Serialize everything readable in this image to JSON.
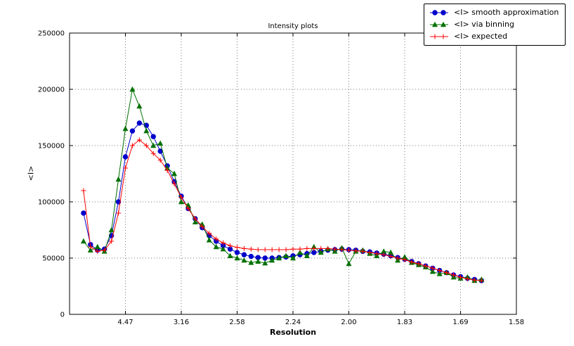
{
  "figure": {
    "title": "Intensity plots",
    "xlabel": "Resolution",
    "ylabel": "<I>"
  },
  "legend": {
    "entries": [
      {
        "label": "<I> smooth approximation"
      },
      {
        "label": "<I> via binning"
      },
      {
        "label": "<I> expected"
      }
    ]
  },
  "chart_data": {
    "type": "line",
    "title": "Intensity plots",
    "xlabel": "Resolution",
    "ylabel": "<I>",
    "grid": "dotted",
    "legend_position": "upper right",
    "x_axis": {
      "lim": [
        0,
        0.4
      ],
      "ticks": [
        {
          "value": 0.05,
          "label": "4.47"
        },
        {
          "value": 0.1,
          "label": "3.16"
        },
        {
          "value": 0.15,
          "label": "2.58"
        },
        {
          "value": 0.2,
          "label": "2.24"
        },
        {
          "value": 0.25,
          "label": "2.00"
        },
        {
          "value": 0.3,
          "label": "1.83"
        },
        {
          "value": 0.35,
          "label": "1.69"
        },
        {
          "value": 0.4,
          "label": "1.58"
        }
      ]
    },
    "y_axis": {
      "lim": [
        0,
        250000
      ],
      "ticks": [
        {
          "value": 0,
          "label": "0"
        },
        {
          "value": 50000,
          "label": "50000"
        },
        {
          "value": 100000,
          "label": "100000"
        },
        {
          "value": 150000,
          "label": "150000"
        },
        {
          "value": 200000,
          "label": "200000"
        },
        {
          "value": 250000,
          "label": "250000"
        }
      ]
    },
    "x": [
      0.0125,
      0.01875,
      0.025,
      0.03125,
      0.0375,
      0.04375,
      0.05,
      0.05625,
      0.0625,
      0.06875,
      0.075,
      0.08125,
      0.0875,
      0.09375,
      0.1,
      0.10625,
      0.1125,
      0.11875,
      0.125,
      0.13125,
      0.1375,
      0.14375,
      0.15,
      0.15625,
      0.1625,
      0.16875,
      0.175,
      0.18125,
      0.1875,
      0.19375,
      0.2,
      0.20625,
      0.2125,
      0.21875,
      0.225,
      0.23125,
      0.2375,
      0.24375,
      0.25,
      0.25625,
      0.2625,
      0.26875,
      0.275,
      0.28125,
      0.2875,
      0.29375,
      0.3,
      0.30625,
      0.3125,
      0.31875,
      0.325,
      0.33125,
      0.3375,
      0.34375,
      0.35,
      0.35625,
      0.3625,
      0.36875
    ],
    "series": [
      {
        "name": "<I> smooth approximation",
        "color": "#0000cc",
        "marker": "circle",
        "values": [
          90000,
          62000,
          57000,
          58000,
          70000,
          100000,
          140000,
          163000,
          170000,
          168000,
          158000,
          145000,
          132000,
          118000,
          105000,
          94000,
          85000,
          77000,
          70000,
          65000,
          61000,
          58000,
          55000,
          53000,
          51500,
          50500,
          50000,
          50000,
          50500,
          51000,
          52000,
          53000,
          54000,
          55000,
          56000,
          57000,
          57500,
          58000,
          57500,
          57000,
          56000,
          55500,
          54500,
          53500,
          52000,
          50500,
          49000,
          47000,
          45000,
          43000,
          41000,
          39000,
          37000,
          35000,
          33500,
          32000,
          31000,
          30000
        ]
      },
      {
        "name": "<I> via binning",
        "color": "#007000",
        "marker": "triangle",
        "values": [
          65000,
          57000,
          60000,
          56000,
          75000,
          120000,
          165000,
          200000,
          185000,
          163000,
          150000,
          152000,
          130000,
          125000,
          100000,
          97000,
          82000,
          80000,
          66000,
          60000,
          58000,
          52000,
          50000,
          48000,
          46000,
          47000,
          45500,
          48000,
          50000,
          52000,
          50000,
          55000,
          52000,
          60000,
          55000,
          58000,
          56000,
          59000,
          45000,
          56000,
          57000,
          54000,
          52000,
          56000,
          55000,
          48000,
          51000,
          46000,
          44000,
          42000,
          38000,
          36000,
          37000,
          33000,
          32000,
          33000,
          30000,
          31000
        ]
      },
      {
        "name": "<I> expected",
        "color": "#ff0000",
        "marker": "plus",
        "values": [
          110000,
          60000,
          56000,
          57000,
          65000,
          90000,
          130000,
          150000,
          155000,
          150000,
          143000,
          137000,
          128000,
          116000,
          104000,
          94000,
          85000,
          78000,
          72000,
          67000,
          63500,
          61000,
          59500,
          58500,
          58000,
          57500,
          57500,
          57500,
          57500,
          57500,
          58000,
          58000,
          58500,
          58500,
          58500,
          58500,
          58000,
          57500,
          57000,
          56500,
          56000,
          55000,
          54000,
          53000,
          51500,
          50000,
          48500,
          46500,
          45000,
          43000,
          41000,
          39000,
          37000,
          35000,
          33000,
          31500,
          30500,
          30000
        ]
      }
    ]
  }
}
